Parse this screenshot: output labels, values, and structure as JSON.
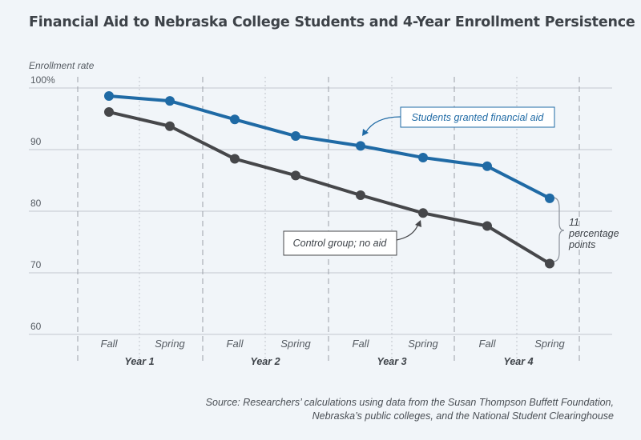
{
  "chart_data": {
    "type": "line",
    "title": "Financial Aid to Nebraska College Students and 4-Year Enrollment Persistence",
    "ylabel": "Enrollment rate",
    "ylim": [
      60,
      100
    ],
    "yticks": [
      "100%",
      "90",
      "80",
      "70",
      "60"
    ],
    "ytick_values": [
      100,
      90,
      80,
      70,
      60
    ],
    "categories": [
      "Fall",
      "Spring",
      "Fall",
      "Spring",
      "Fall",
      "Spring",
      "Fall",
      "Spring"
    ],
    "year_groups": [
      "Year 1",
      "Year 2",
      "Year 3",
      "Year 4"
    ],
    "grid": true,
    "series": [
      {
        "name": "Students granted financial aid",
        "color": "#1f6aa5",
        "values": [
          98.7,
          97.9,
          94.9,
          92.2,
          90.6,
          88.7,
          87.3,
          82.1
        ]
      },
      {
        "name": "Control group; no aid",
        "color": "#46474a",
        "values": [
          96.1,
          93.8,
          88.5,
          85.8,
          82.6,
          79.7,
          77.6,
          71.5
        ]
      }
    ],
    "annotations": {
      "aid_label": "Students granted financial aid",
      "control_label": "Control group; no aid",
      "gap_lines": [
        "11",
        "percentage",
        "points"
      ]
    },
    "source": "Source: Researchers’ calculations using data from the Susan Thompson Buffett Foundation, Nebraska’s public colleges, and the National Student Clearinghouse"
  }
}
